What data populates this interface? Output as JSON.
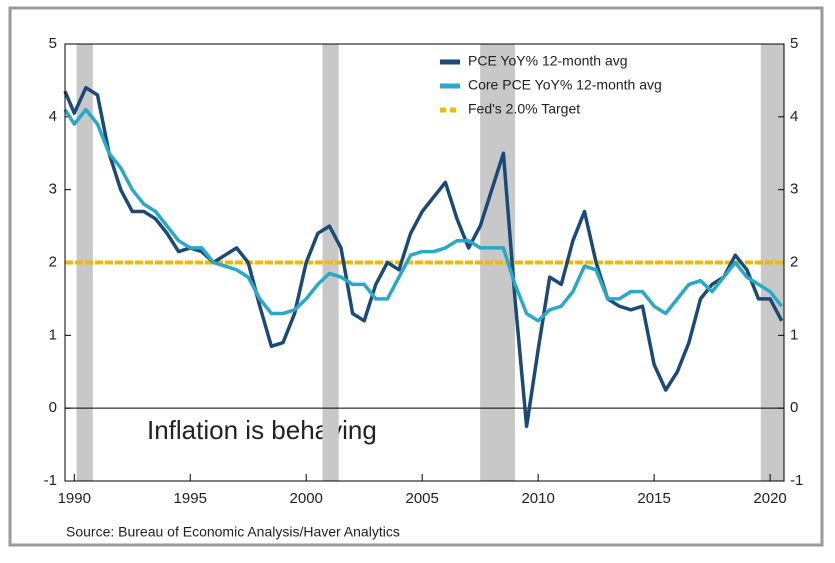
{
  "chart_data": {
    "type": "line",
    "annotation": "Inflation is behaving",
    "source": "Source:  Bureau of Economic Analysis/Haver Analytics",
    "x": [
      1989.6,
      1990,
      1990.5,
      1991,
      1991.5,
      1992,
      1992.5,
      1993,
      1993.5,
      1994,
      1994.5,
      1995,
      1995.5,
      1996,
      1996.5,
      1997,
      1997.5,
      1998,
      1998.5,
      1999,
      1999.5,
      2000,
      2000.5,
      2001,
      2001.5,
      2002,
      2002.5,
      2003,
      2003.5,
      2004,
      2004.5,
      2005,
      2005.5,
      2006,
      2006.5,
      2007,
      2007.5,
      2008,
      2008.5,
      2009,
      2009.5,
      2010,
      2010.5,
      2011,
      2011.5,
      2012,
      2012.5,
      2013,
      2013.5,
      2014,
      2014.5,
      2015,
      2015.5,
      2016,
      2016.5,
      2017,
      2017.5,
      2018,
      2018.5,
      2019,
      2019.5,
      2020,
      2020.5
    ],
    "series": [
      {
        "name": "PCE YoY% 12-month avg",
        "color": "#1b4a78",
        "values": [
          4.35,
          4.05,
          4.4,
          4.3,
          3.5,
          3.0,
          2.7,
          2.7,
          2.6,
          2.4,
          2.15,
          2.2,
          2.15,
          2.0,
          2.1,
          2.2,
          2.0,
          1.4,
          0.85,
          0.9,
          1.3,
          2.0,
          2.4,
          2.5,
          2.2,
          1.3,
          1.2,
          1.7,
          2.0,
          1.9,
          2.4,
          2.7,
          2.9,
          3.1,
          2.6,
          2.2,
          2.5,
          3.0,
          3.5,
          1.5,
          -0.25,
          0.8,
          1.8,
          1.7,
          2.3,
          2.7,
          2.0,
          1.5,
          1.4,
          1.35,
          1.4,
          0.6,
          0.25,
          0.5,
          0.9,
          1.5,
          1.7,
          1.8,
          2.1,
          1.9,
          1.5,
          1.5,
          1.2
        ]
      },
      {
        "name": "Core PCE YoY% 12-month avg",
        "color": "#2aa8c8",
        "values": [
          4.1,
          3.9,
          4.1,
          3.9,
          3.5,
          3.3,
          3.0,
          2.8,
          2.7,
          2.5,
          2.3,
          2.2,
          2.2,
          2.0,
          1.95,
          1.9,
          1.8,
          1.5,
          1.3,
          1.3,
          1.35,
          1.5,
          1.7,
          1.85,
          1.8,
          1.7,
          1.7,
          1.5,
          1.5,
          1.8,
          2.1,
          2.15,
          2.15,
          2.2,
          2.3,
          2.3,
          2.2,
          2.2,
          2.2,
          1.7,
          1.3,
          1.2,
          1.35,
          1.4,
          1.6,
          1.95,
          1.9,
          1.5,
          1.5,
          1.6,
          1.6,
          1.4,
          1.3,
          1.5,
          1.7,
          1.75,
          1.6,
          1.8,
          2.0,
          1.8,
          1.7,
          1.6,
          1.4
        ]
      }
    ],
    "target": {
      "name": "Fed's 2.0% Target",
      "value": 2,
      "color": "#f5b800"
    },
    "recessions": [
      [
        1990.1,
        1990.8
      ],
      [
        2000.7,
        2001.4
      ],
      [
        2007.5,
        2009.0
      ],
      [
        2019.6,
        2020.6
      ]
    ],
    "recession_color": "#c8c8c8",
    "xlim": [
      1989.6,
      2020.6
    ],
    "xticks": [
      1990,
      1995,
      2000,
      2005,
      2010,
      2015,
      2020
    ],
    "ylim": [
      -1,
      5
    ],
    "yticks": [
      -1,
      0,
      1,
      2,
      3,
      4,
      5
    ],
    "legend": "top-right"
  }
}
